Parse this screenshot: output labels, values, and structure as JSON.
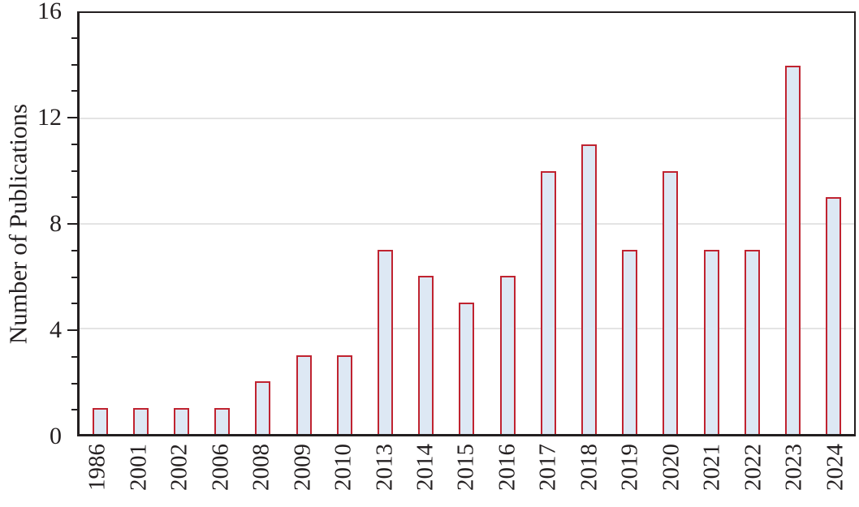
{
  "chart_data": {
    "type": "bar",
    "title": "",
    "xlabel": "",
    "ylabel": "Number of Publications",
    "categories": [
      "1986",
      "2001",
      "2002",
      "2006",
      "2008",
      "2009",
      "2010",
      "2013",
      "2014",
      "2015",
      "2016",
      "2017",
      "2018",
      "2019",
      "2020",
      "2021",
      "2022",
      "2023",
      "2024"
    ],
    "values": [
      1,
      1,
      1,
      1,
      2,
      3,
      3,
      7,
      6,
      5,
      6,
      10,
      11,
      7,
      10,
      7,
      7,
      14,
      9
    ],
    "ylim": [
      0,
      16
    ],
    "yticks": [
      0,
      4,
      8,
      12,
      16
    ],
    "minor_tick_step": 1,
    "gridlines": [
      4,
      8,
      12
    ],
    "grid": "horizontal-major-only",
    "legend": "none",
    "colors": {
      "bar_fill": "#dde8f4",
      "bar_border": "#c02330",
      "axis": "#231f20",
      "gridline": "#e4e4e4",
      "text": "#231f20",
      "background": "#ffffff"
    }
  }
}
